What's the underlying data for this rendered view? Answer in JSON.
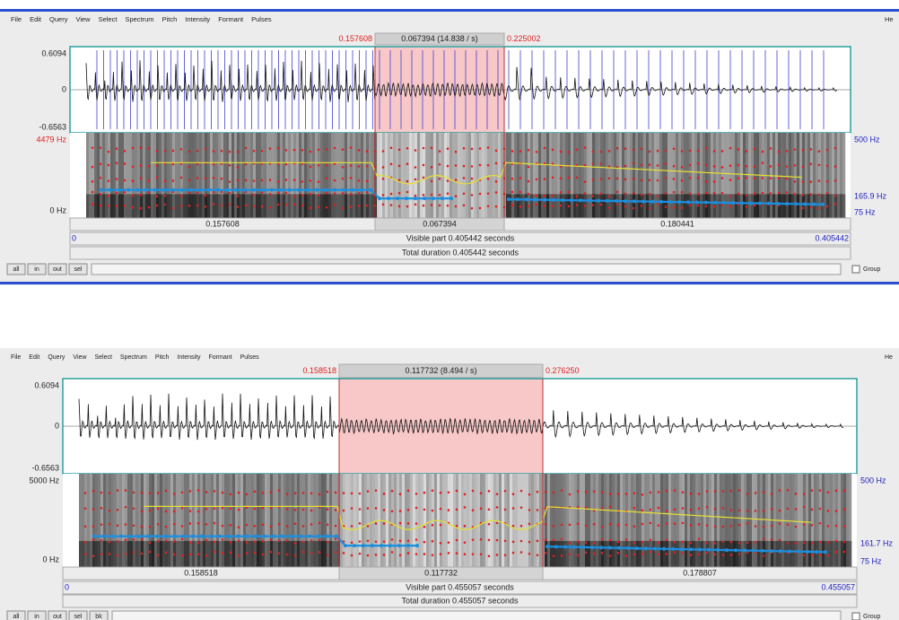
{
  "windows": [
    {
      "menu": [
        "File",
        "Edit",
        "Query",
        "View",
        "Select",
        "Spectrum",
        "Pitch",
        "Intensity",
        "Formant",
        "Pulses",
        "He"
      ],
      "selection": {
        "start": "0.157608",
        "length": "0.067394 (14.838 / s)",
        "end": "0.225002"
      },
      "waveform": {
        "max": "0.6094",
        "zero": "0",
        "min": "-0.6563"
      },
      "spectrogram": {
        "max": "4479 Hz",
        "min": "0 Hz"
      },
      "right_labels": {
        "max": "500 Hz",
        "pitch": "165.9 Hz",
        "min": "75 Hz"
      },
      "segments": [
        "0.157608",
        "0.067394",
        "0.180441"
      ],
      "visible": {
        "start": "0",
        "label": "Visible part 0.405442 seconds",
        "end": "0.405442"
      },
      "total": "Total duration 0.405442 seconds",
      "buttons": [
        "all",
        "in",
        "out",
        "sel"
      ],
      "group": "Group"
    },
    {
      "menu": [
        "File",
        "Edit",
        "Query",
        "View",
        "Select",
        "Spectrum",
        "Pitch",
        "Intensity",
        "Formant",
        "Pulses",
        "He"
      ],
      "selection": {
        "start": "0.158518",
        "length": "0.117732 (8.494 / s)",
        "end": "0.276250"
      },
      "waveform": {
        "max": "0.6094",
        "zero": "0",
        "min": "-0.6563"
      },
      "spectrogram": {
        "max": "5000 Hz",
        "min": "0 Hz"
      },
      "right_labels": {
        "max": "500 Hz",
        "pitch": "161.7 Hz",
        "min": "75 Hz"
      },
      "segments": [
        "0.158518",
        "0.117732",
        "0.178807"
      ],
      "visible": {
        "start": "0",
        "label": "Visible part 0.455057 seconds",
        "end": "0.455057"
      },
      "total": "Total duration 0.455057 seconds",
      "buttons": [
        "all",
        "in",
        "out",
        "sel",
        "bk"
      ],
      "group": "Group"
    }
  ]
}
